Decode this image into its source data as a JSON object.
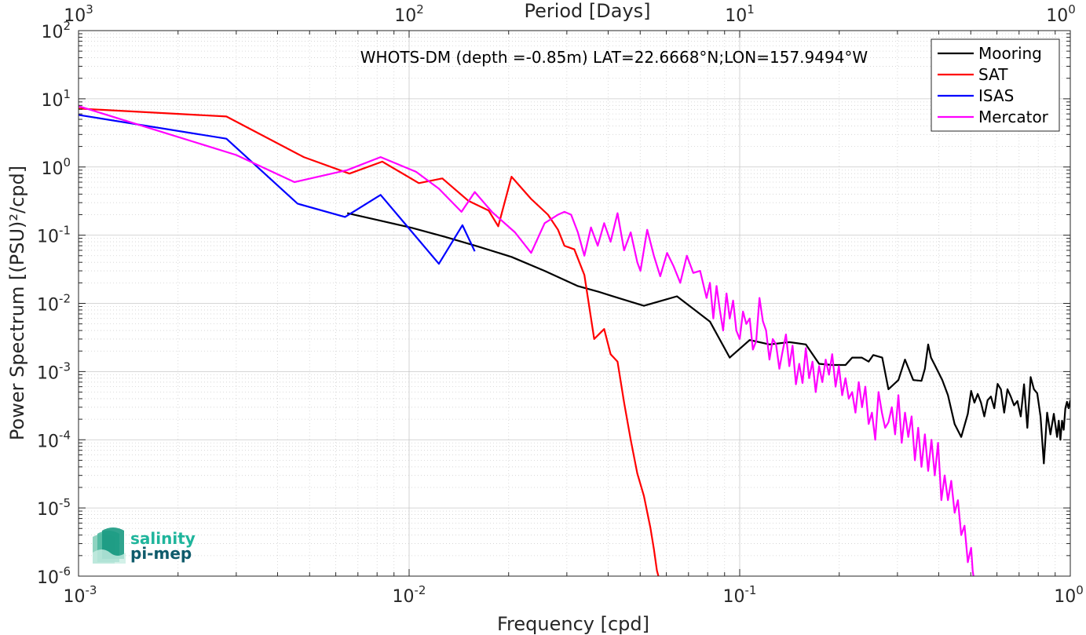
{
  "chart_data": {
    "type": "line",
    "annotation": "WHOTS-DM (depth =-0.85m) LAT=22.6668°N;LON=157.9494°W",
    "xlabel": "Frequency [cpd]",
    "ylabel": "Power Spectrum [(PSU)²/cpd]",
    "x2label": "Period [Days]",
    "xscale": "log",
    "yscale": "log",
    "xlim": [
      0.001,
      1
    ],
    "ylim": [
      1e-06,
      100
    ],
    "grid": true,
    "legend_position": "top-right",
    "x_ticks": [
      {
        "value": 0.001,
        "base": "10",
        "exp": "-3"
      },
      {
        "value": 0.01,
        "base": "10",
        "exp": "-2"
      },
      {
        "value": 0.1,
        "base": "10",
        "exp": "-1"
      },
      {
        "value": 1,
        "base": "10",
        "exp": "0"
      }
    ],
    "x2_ticks": [
      {
        "value": 0.001,
        "base": "10",
        "exp": "3"
      },
      {
        "value": 0.01,
        "base": "10",
        "exp": "2"
      },
      {
        "value": 0.1,
        "base": "10",
        "exp": "1"
      },
      {
        "value": 1,
        "base": "10",
        "exp": "0"
      }
    ],
    "y_ticks": [
      {
        "value": 100,
        "base": "10",
        "exp": "2"
      },
      {
        "value": 10,
        "base": "10",
        "exp": "1"
      },
      {
        "value": 1,
        "base": "10",
        "exp": "0"
      },
      {
        "value": 0.1,
        "base": "10",
        "exp": "-1"
      },
      {
        "value": 0.01,
        "base": "10",
        "exp": "-2"
      },
      {
        "value": 0.001,
        "base": "10",
        "exp": "-3"
      },
      {
        "value": 0.0001,
        "base": "10",
        "exp": "-4"
      },
      {
        "value": 1e-05,
        "base": "10",
        "exp": "-5"
      },
      {
        "value": 1e-06,
        "base": "10",
        "exp": "-6"
      }
    ],
    "series": [
      {
        "name": "Mooring",
        "color": "#000000",
        "points": [
          [
            0.0065,
            0.21
          ],
          [
            0.0081,
            0.165
          ],
          [
            0.0102,
            0.128
          ],
          [
            0.0128,
            0.095
          ],
          [
            0.0162,
            0.068
          ],
          [
            0.0204,
            0.048
          ],
          [
            0.0257,
            0.03
          ],
          [
            0.0323,
            0.018
          ],
          [
            0.0374,
            0.0148
          ],
          [
            0.0407,
            0.013
          ],
          [
            0.0513,
            0.0092
          ],
          [
            0.0646,
            0.0127
          ],
          [
            0.0813,
            0.0054
          ],
          [
            0.0933,
            0.0016
          ],
          [
            0.1072,
            0.0029
          ],
          [
            0.1231,
            0.0025
          ],
          [
            0.1413,
            0.0027
          ],
          [
            0.1585,
            0.0025
          ],
          [
            0.1738,
            0.0013
          ],
          [
            0.1906,
            0.00125
          ],
          [
            0.209,
            0.00125
          ],
          [
            0.2188,
            0.0016
          ],
          [
            0.2339,
            0.0016
          ],
          [
            0.2455,
            0.0014
          ],
          [
            0.2535,
            0.00175
          ],
          [
            0.2698,
            0.0016
          ],
          [
            0.2818,
            0.00055
          ],
          [
            0.302,
            0.00075
          ],
          [
            0.3162,
            0.0015
          ],
          [
            0.335,
            0.00075
          ],
          [
            0.3548,
            0.00073
          ],
          [
            0.3631,
            0.0011
          ],
          [
            0.3715,
            0.0025
          ],
          [
            0.379,
            0.0016
          ],
          [
            0.389,
            0.00125
          ],
          [
            0.41,
            0.00075
          ],
          [
            0.4266,
            0.00045
          ],
          [
            0.4467,
            0.00017
          ],
          [
            0.4677,
            0.00011
          ],
          [
            0.4898,
            0.00024
          ],
          [
            0.5012,
            0.00052
          ],
          [
            0.5129,
            0.00035
          ],
          [
            0.5248,
            0.00047
          ],
          [
            0.537,
            0.00035
          ],
          [
            0.5495,
            0.00022
          ],
          [
            0.5623,
            0.00038
          ],
          [
            0.5754,
            0.00043
          ],
          [
            0.5888,
            0.00029
          ],
          [
            0.6026,
            0.00066
          ],
          [
            0.6166,
            0.00055
          ],
          [
            0.631,
            0.00025
          ],
          [
            0.6457,
            0.00055
          ],
          [
            0.6607,
            0.00043
          ],
          [
            0.6761,
            0.00032
          ],
          [
            0.6918,
            0.00037
          ],
          [
            0.708,
            0.00022
          ],
          [
            0.7244,
            0.00065
          ],
          [
            0.7413,
            0.00015
          ],
          [
            0.7586,
            0.00083
          ],
          [
            0.7762,
            0.00055
          ],
          [
            0.7943,
            0.00048
          ],
          [
            0.8128,
            0.00022
          ],
          [
            0.8318,
            4.5e-05
          ],
          [
            0.8511,
            0.00025
          ],
          [
            0.871,
            0.00012
          ],
          [
            0.8913,
            0.00024
          ],
          [
            0.912,
            0.00011
          ],
          [
            0.9226,
            0.00019
          ],
          [
            0.9333,
            0.0001
          ],
          [
            0.9441,
            0.00019
          ],
          [
            0.955,
            0.00014
          ],
          [
            0.9661,
            0.00029
          ],
          [
            0.9772,
            0.00036
          ],
          [
            0.9886,
            0.00029
          ],
          [
            1.0,
            0.00038
          ]
        ]
      },
      {
        "name": "SAT",
        "color": "#ff0000",
        "points": [
          [
            0.001,
            7.2
          ],
          [
            0.0028,
            5.5
          ],
          [
            0.0048,
            1.4
          ],
          [
            0.0066,
            0.8
          ],
          [
            0.0083,
            1.2
          ],
          [
            0.0107,
            0.58
          ],
          [
            0.0126,
            0.68
          ],
          [
            0.0151,
            0.32
          ],
          [
            0.0174,
            0.23
          ],
          [
            0.0186,
            0.135
          ],
          [
            0.0204,
            0.72
          ],
          [
            0.0234,
            0.34
          ],
          [
            0.0263,
            0.2
          ],
          [
            0.0282,
            0.12
          ],
          [
            0.0295,
            0.07
          ],
          [
            0.0316,
            0.062
          ],
          [
            0.0339,
            0.026
          ],
          [
            0.0363,
            0.003
          ],
          [
            0.0389,
            0.0042
          ],
          [
            0.0407,
            0.0018
          ],
          [
            0.0427,
            0.0014
          ],
          [
            0.0447,
            0.00035
          ],
          [
            0.0468,
            0.0001
          ],
          [
            0.049,
            3.2e-05
          ],
          [
            0.0513,
            1.5e-05
          ],
          [
            0.0537,
            5.1e-06
          ],
          [
            0.055,
            2.5e-06
          ],
          [
            0.0562,
            1.2e-06
          ],
          [
            0.0575,
            8e-07
          ]
        ]
      },
      {
        "name": "ISAS",
        "color": "#0000ff",
        "points": [
          [
            0.001,
            5.8
          ],
          [
            0.0028,
            2.6
          ],
          [
            0.0046,
            0.29
          ],
          [
            0.0064,
            0.185
          ],
          [
            0.0082,
            0.39
          ],
          [
            0.0123,
            0.038
          ],
          [
            0.0145,
            0.14
          ],
          [
            0.0158,
            0.058
          ]
        ]
      },
      {
        "name": "Mercator",
        "color": "#ff00ff",
        "points": [
          [
            0.001,
            7.8
          ],
          [
            0.003,
            1.5
          ],
          [
            0.0045,
            0.6
          ],
          [
            0.0065,
            0.9
          ],
          [
            0.0082,
            1.4
          ],
          [
            0.0105,
            0.85
          ],
          [
            0.0123,
            0.48
          ],
          [
            0.0144,
            0.22
          ],
          [
            0.0158,
            0.43
          ],
          [
            0.0178,
            0.22
          ],
          [
            0.0209,
            0.11
          ],
          [
            0.0234,
            0.055
          ],
          [
            0.0257,
            0.15
          ],
          [
            0.0282,
            0.2
          ],
          [
            0.0295,
            0.22
          ],
          [
            0.0309,
            0.2
          ],
          [
            0.0324,
            0.11
          ],
          [
            0.0339,
            0.05
          ],
          [
            0.0355,
            0.13
          ],
          [
            0.0372,
            0.07
          ],
          [
            0.0389,
            0.15
          ],
          [
            0.0407,
            0.08
          ],
          [
            0.0427,
            0.21
          ],
          [
            0.0447,
            0.06
          ],
          [
            0.0468,
            0.11
          ],
          [
            0.049,
            0.04
          ],
          [
            0.0501,
            0.03
          ],
          [
            0.0525,
            0.12
          ],
          [
            0.055,
            0.05
          ],
          [
            0.0575,
            0.025
          ],
          [
            0.0603,
            0.055
          ],
          [
            0.0631,
            0.035
          ],
          [
            0.0661,
            0.02
          ],
          [
            0.0692,
            0.05
          ],
          [
            0.0724,
            0.028
          ],
          [
            0.0759,
            0.03
          ],
          [
            0.0794,
            0.012
          ],
          [
            0.0813,
            0.02
          ],
          [
            0.0832,
            0.006
          ],
          [
            0.0851,
            0.018
          ],
          [
            0.0871,
            0.008
          ],
          [
            0.0891,
            0.004
          ],
          [
            0.0912,
            0.014
          ],
          [
            0.0933,
            0.006
          ],
          [
            0.0955,
            0.011
          ],
          [
            0.0977,
            0.004
          ],
          [
            0.1,
            0.003
          ],
          [
            0.1023,
            0.0076
          ],
          [
            0.1047,
            0.005
          ],
          [
            0.1072,
            0.006
          ],
          [
            0.1096,
            0.0021
          ],
          [
            0.1122,
            0.0028
          ],
          [
            0.1148,
            0.012
          ],
          [
            0.1175,
            0.0055
          ],
          [
            0.1202,
            0.004
          ],
          [
            0.123,
            0.0015
          ],
          [
            0.1259,
            0.003
          ],
          [
            0.1288,
            0.0025
          ],
          [
            0.1318,
            0.0011
          ],
          [
            0.1349,
            0.002
          ],
          [
            0.138,
            0.0035
          ],
          [
            0.1413,
            0.0012
          ],
          [
            0.1445,
            0.0024
          ],
          [
            0.1479,
            0.00065
          ],
          [
            0.1514,
            0.0013
          ],
          [
            0.1549,
            0.00068
          ],
          [
            0.1585,
            0.0022
          ],
          [
            0.1622,
            0.0008
          ],
          [
            0.166,
            0.0014
          ],
          [
            0.1698,
            0.0005
          ],
          [
            0.1738,
            0.0012
          ],
          [
            0.1778,
            0.0007
          ],
          [
            0.182,
            0.0015
          ],
          [
            0.1862,
            0.0009
          ],
          [
            0.1905,
            0.0018
          ],
          [
            0.195,
            0.0006
          ],
          [
            0.1995,
            0.0012
          ],
          [
            0.2042,
            0.00045
          ],
          [
            0.2089,
            0.0008
          ],
          [
            0.2138,
            0.0004
          ],
          [
            0.2188,
            0.0005
          ],
          [
            0.2239,
            0.00025
          ],
          [
            0.2291,
            0.0007
          ],
          [
            0.2344,
            0.0003
          ],
          [
            0.2399,
            0.0006
          ],
          [
            0.2455,
            0.00017
          ],
          [
            0.2512,
            0.00025
          ],
          [
            0.257,
            0.0001
          ],
          [
            0.263,
            0.0005
          ],
          [
            0.2692,
            0.00025
          ],
          [
            0.2754,
            0.00015
          ],
          [
            0.2818,
            0.00018
          ],
          [
            0.2884,
            0.0003
          ],
          [
            0.2951,
            0.00012
          ],
          [
            0.302,
            0.00045
          ],
          [
            0.309,
            9e-05
          ],
          [
            0.3162,
            0.00025
          ],
          [
            0.3236,
            0.00011
          ],
          [
            0.3311,
            0.00022
          ],
          [
            0.3388,
            5e-05
          ],
          [
            0.3467,
            0.00015
          ],
          [
            0.3548,
            4e-05
          ],
          [
            0.3631,
            0.00012
          ],
          [
            0.3715,
            3.5e-05
          ],
          [
            0.3802,
            0.0001
          ],
          [
            0.389,
            3e-05
          ],
          [
            0.3981,
            9e-05
          ],
          [
            0.4074,
            1.3e-05
          ],
          [
            0.4169,
            3e-05
          ],
          [
            0.4266,
            1.3e-05
          ],
          [
            0.4365,
            2.5e-05
          ],
          [
            0.4467,
            8.5e-06
          ],
          [
            0.4571,
            1.3e-05
          ],
          [
            0.4677,
            4e-06
          ],
          [
            0.4786,
            5.5e-06
          ],
          [
            0.4898,
            1.6e-06
          ],
          [
            0.5012,
            2.6e-06
          ],
          [
            0.5066,
            1.2e-06
          ],
          [
            0.5129,
            8e-07
          ]
        ]
      }
    ]
  }
}
